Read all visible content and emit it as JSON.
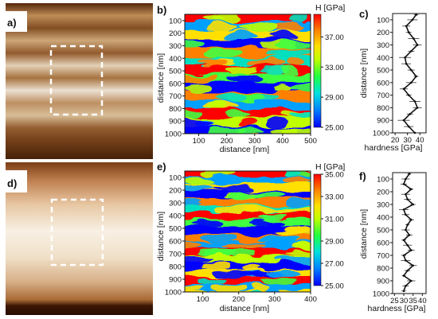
{
  "panel_labels": [
    "a)",
    "b)",
    "c)",
    "d)",
    "e)",
    "f)"
  ],
  "colors": {
    "afm_dark": "#4a2208",
    "afm_mid": "#a86a36",
    "afm_light": "#f6ecdc",
    "dashed_box": "#ffffff",
    "colormap": [
      "#0000ff",
      "#00a0ff",
      "#00e0c0",
      "#40ff40",
      "#c0ff00",
      "#ffe000",
      "#ff8000",
      "#ff0000"
    ],
    "frame": "#111111"
  },
  "chart_data": [
    {
      "type": "heatmap",
      "panel": "b)",
      "xlabel": "distance [nm]",
      "ylabel": "distance [nm]",
      "xlim": [
        50,
        500
      ],
      "ylim": [
        1000,
        50
      ],
      "xticks": [
        "100",
        "200",
        "300",
        "400",
        "500"
      ],
      "yticks": [
        "100",
        "200",
        "300",
        "400",
        "500",
        "600",
        "700",
        "800",
        "900",
        "1000"
      ],
      "colorbar": {
        "title": "H [GPa]",
        "range": [
          25,
          40
        ],
        "ticks": [
          "37.00",
          "33.00",
          "29.00",
          "25.00"
        ]
      }
    },
    {
      "type": "line",
      "panel": "c)",
      "xlabel": "hardness [GPa]",
      "ylabel": "distance [nm]",
      "xlim": [
        18,
        45
      ],
      "ylim": [
        1000,
        50
      ],
      "xticks": [
        "20",
        "30",
        "40"
      ],
      "yticks": [
        "100",
        "200",
        "300",
        "400",
        "500",
        "600",
        "700",
        "800",
        "900",
        "1000"
      ],
      "y": [
        60,
        100,
        150,
        200,
        250,
        300,
        350,
        400,
        450,
        500,
        550,
        600,
        650,
        700,
        750,
        800,
        850,
        900,
        950,
        1000
      ],
      "values": [
        37,
        34,
        29,
        31,
        35,
        38,
        33,
        28,
        29,
        33,
        37,
        33,
        27,
        31,
        36,
        38,
        32,
        27,
        31,
        36
      ]
    },
    {
      "type": "heatmap",
      "panel": "e)",
      "xlabel": "distance [nm]",
      "ylabel": "distance [nm]",
      "xlim": [
        50,
        400
      ],
      "ylim": [
        1000,
        50
      ],
      "xticks": [
        "100",
        "200",
        "300",
        "400"
      ],
      "yticks": [
        "100",
        "200",
        "300",
        "400",
        "500",
        "600",
        "700",
        "800",
        "900",
        "1000"
      ],
      "colorbar": {
        "title": "H [GPa]",
        "range": [
          25,
          35
        ],
        "ticks": [
          "35.00",
          "33.00",
          "31.00",
          "29.00",
          "27.00",
          "25.00"
        ]
      }
    },
    {
      "type": "line",
      "panel": "f)",
      "xlabel": "hardness [GPa]",
      "ylabel": "distance [nm]",
      "xlim": [
        24,
        42
      ],
      "ylim": [
        1000,
        50
      ],
      "xticks": [
        "25",
        "30",
        "35",
        "40"
      ],
      "yticks": [
        "100",
        "200",
        "300",
        "400",
        "500",
        "600",
        "700",
        "800",
        "900",
        "1000"
      ],
      "y": [
        60,
        100,
        140,
        180,
        220,
        260,
        300,
        340,
        380,
        420,
        460,
        500,
        540,
        580,
        620,
        660,
        700,
        740,
        780,
        820,
        860,
        900,
        940,
        980
      ],
      "values": [
        33,
        31,
        30,
        34,
        31,
        32,
        35,
        30,
        31,
        34,
        32,
        31,
        33,
        30,
        32,
        34,
        30,
        31,
        35,
        32,
        30,
        34,
        31,
        30
      ]
    }
  ]
}
